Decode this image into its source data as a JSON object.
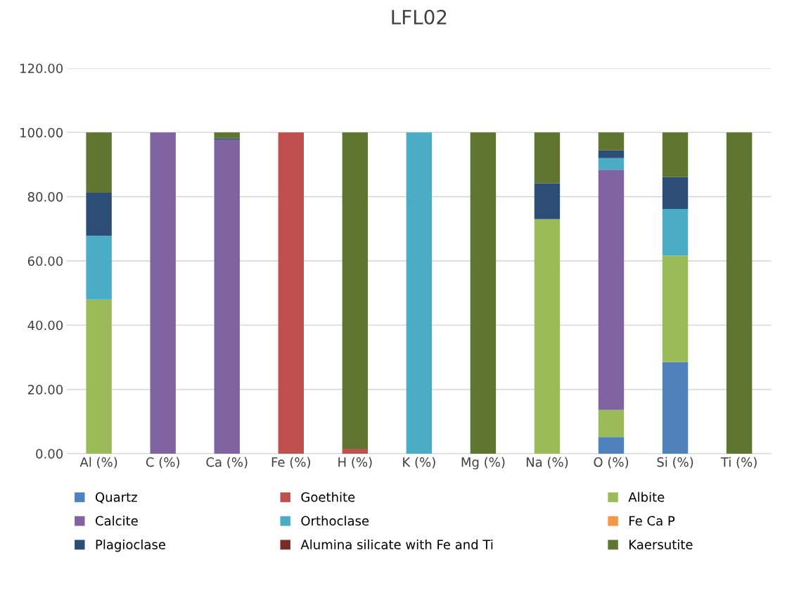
{
  "chart_data": {
    "type": "bar",
    "title": "LFL02",
    "stacked": true,
    "categories": [
      "Al (%)",
      "C (%)",
      "Ca (%)",
      "Fe (%)",
      "H (%)",
      "K (%)",
      "Mg (%)",
      "Na (%)",
      "O (%)",
      "Si (%)",
      "Ti (%)"
    ],
    "series": [
      {
        "name": "Quartz",
        "color": "#4f81bd",
        "values": [
          0,
          0,
          0,
          0,
          0,
          0,
          0,
          0,
          5.2,
          28.5,
          0
        ]
      },
      {
        "name": "Goethite",
        "color": "#c0504d",
        "values": [
          0,
          0,
          0,
          100,
          1.5,
          0,
          0,
          0,
          0,
          0,
          0
        ]
      },
      {
        "name": "Albite",
        "color": "#9bbb59",
        "values": [
          48.0,
          0,
          0,
          0,
          0,
          0,
          0,
          73.0,
          8.4,
          33.2,
          0
        ]
      },
      {
        "name": "Calcite",
        "color": "#8064a2",
        "values": [
          0,
          100,
          97.7,
          0,
          0,
          0,
          0,
          0,
          74.8,
          0,
          0
        ]
      },
      {
        "name": "Orthoclase",
        "color": "#4bacc6",
        "values": [
          19.8,
          0,
          0,
          0,
          0,
          100,
          0,
          0,
          3.6,
          14.5,
          0
        ]
      },
      {
        "name": "Fe Ca P",
        "color": "#f79646",
        "values": [
          0,
          0,
          0,
          0,
          0,
          0,
          0,
          0,
          0,
          0,
          0
        ]
      },
      {
        "name": "Plagioclase",
        "color": "#2c4d75",
        "values": [
          13.4,
          0,
          0.5,
          0,
          0,
          0,
          0,
          11.2,
          2.4,
          9.9,
          0
        ]
      },
      {
        "name": "Alumina silicate with Fe and Ti",
        "color": "#772c2a",
        "values": [
          0,
          0,
          0,
          0,
          0,
          0,
          0,
          0,
          0,
          0,
          0
        ]
      },
      {
        "name": "Kaersutite",
        "color": "#5f7530",
        "values": [
          18.8,
          0,
          1.8,
          0,
          98.5,
          0,
          100,
          15.8,
          5.6,
          13.9,
          100
        ]
      }
    ],
    "ylim": [
      0,
      120
    ],
    "yticks": [
      {
        "value": 0,
        "label": "0.00"
      },
      {
        "value": 20,
        "label": "20.00"
      },
      {
        "value": 40,
        "label": "40.00"
      },
      {
        "value": 60,
        "label": "60.00"
      },
      {
        "value": 80,
        "label": "80.00"
      },
      {
        "value": 100,
        "label": "100.00"
      },
      {
        "value": 120,
        "label": "120.00"
      }
    ],
    "grid": "y",
    "legend": "bottom"
  }
}
